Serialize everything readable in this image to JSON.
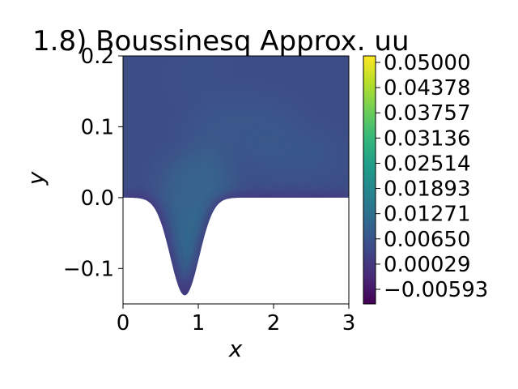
{
  "chart_data": {
    "type": "heatmap",
    "title": "1.8) Boussinesq Approx. uu",
    "xlabel": "x",
    "ylabel": "y",
    "xlim": [
      0,
      3
    ],
    "ylim": [
      -0.15,
      0.2
    ],
    "x_ticks": [
      {
        "value": 0,
        "label": "0"
      },
      {
        "value": 1,
        "label": "1"
      },
      {
        "value": 2,
        "label": "2"
      },
      {
        "value": 3,
        "label": "3"
      }
    ],
    "y_ticks": [
      {
        "value": -0.1,
        "label": "−0.1"
      },
      {
        "value": 0.0,
        "label": "0.0"
      },
      {
        "value": 0.1,
        "label": "0.1"
      },
      {
        "value": 0.2,
        "label": "0.2"
      }
    ],
    "colormap": "viridis",
    "color_range": [
      -0.00593,
      0.05
    ],
    "colorbar_ticks": [
      "0.05000",
      "0.04378",
      "0.03757",
      "0.03136",
      "0.02514",
      "0.01893",
      "0.01271",
      "0.00650",
      "0.00029",
      "−0.00593"
    ],
    "bottom_boundary": {
      "description": "Gaussian dip in the lower wall",
      "center_x": 0.82,
      "min_y": -0.138,
      "flat_y": 0.0
    },
    "field_summary": {
      "background_value": 0.0065,
      "peak_value": 0.0165,
      "peak_location": {
        "x": 0.95,
        "y": -0.05
      }
    }
  }
}
